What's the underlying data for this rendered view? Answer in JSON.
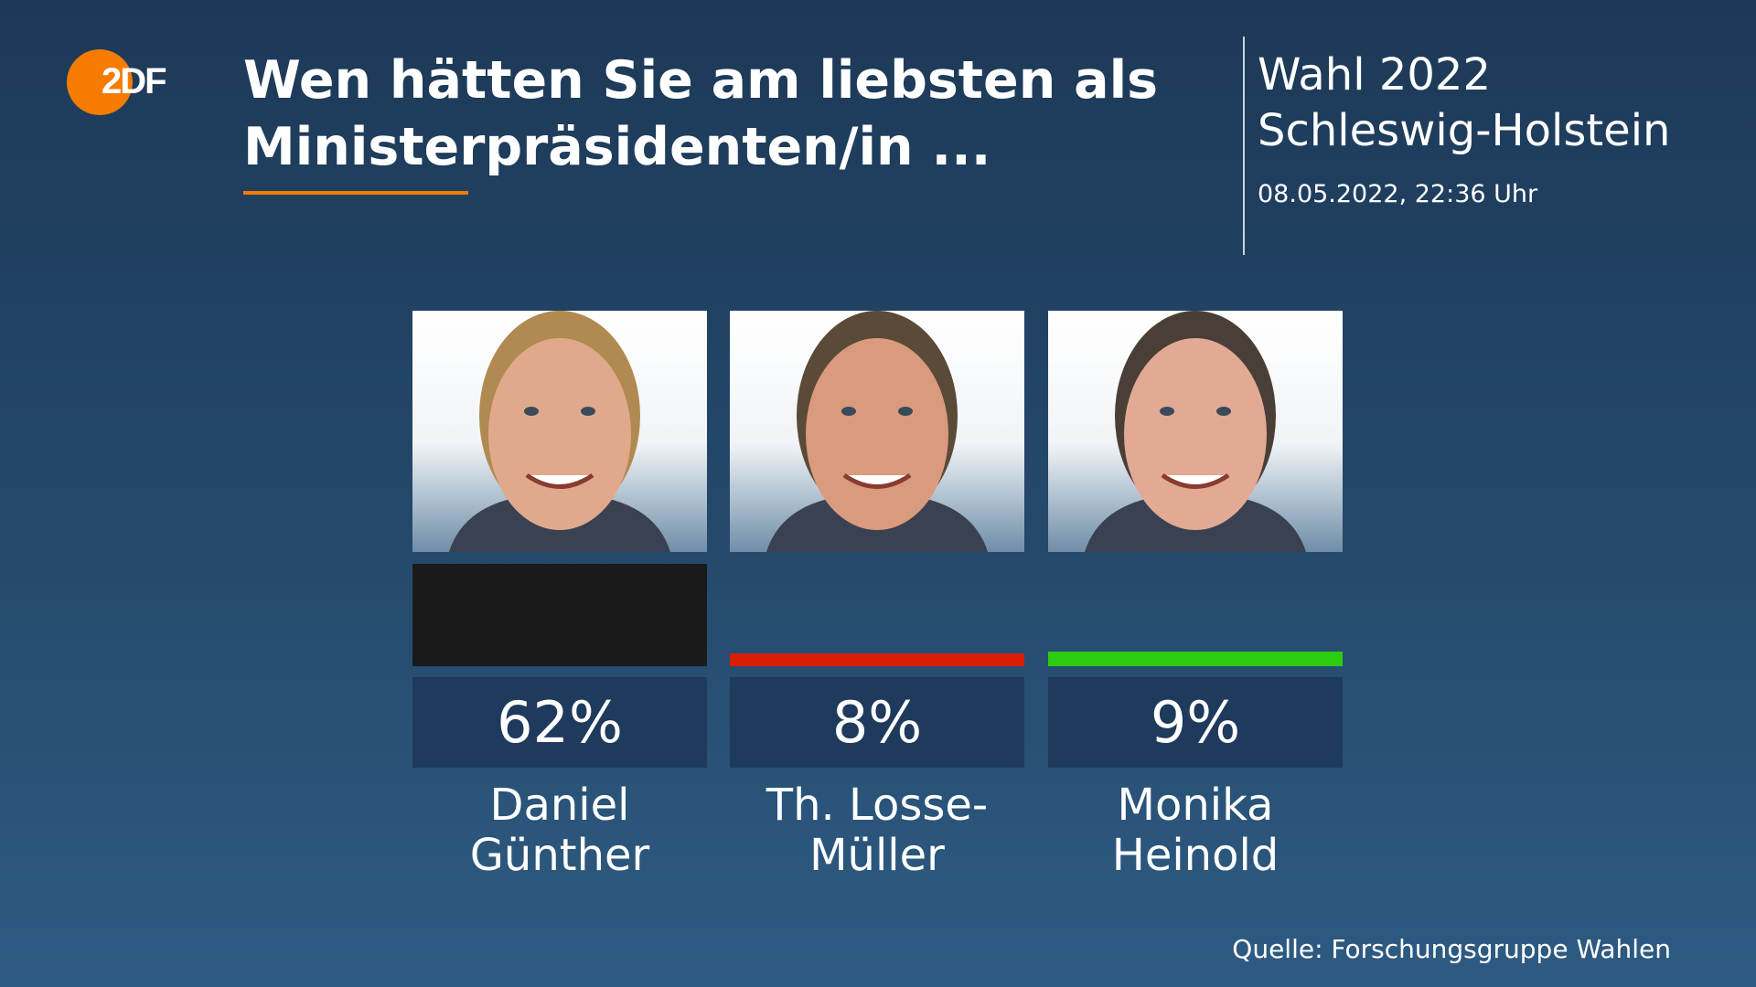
{
  "logo": {
    "text": "2DF",
    "brand": "ZDF",
    "color": "#f57c00"
  },
  "title": "Wen hätten Sie am liebsten als Ministerpräsidenten/in ...",
  "election": {
    "line1": "Wahl 2022",
    "line2": "Schleswig-Holstein",
    "date": "08.05.2022, 22:36 Uhr"
  },
  "chart_data": {
    "type": "bar",
    "categories": [
      "Daniel Günther",
      "Th. Losse-Müller",
      "Monika Heinold"
    ],
    "values": [
      62,
      8,
      9
    ],
    "unit": "%",
    "colors": [
      "#1a1a1a",
      "#d81e05",
      "#2ecc0f"
    ]
  },
  "candidates": [
    {
      "name": "Daniel\nGünther",
      "value_label": "62%"
    },
    {
      "name": "Th. Losse-\nMüller",
      "value_label": "8%"
    },
    {
      "name": "Monika\nHeinold",
      "value_label": "9%"
    }
  ],
  "source": "Quelle: Forschungsgruppe Wahlen"
}
